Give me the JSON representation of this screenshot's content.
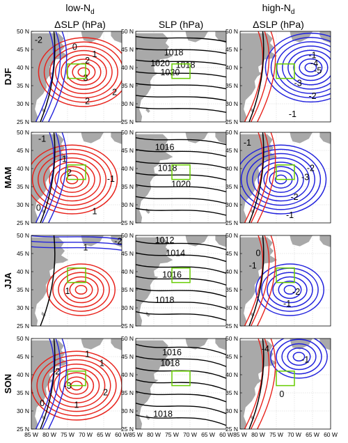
{
  "columns": [
    {
      "line1_main": "low-N",
      "line1_sub": "d",
      "line2": "ΔSLP (hPa)"
    },
    {
      "line1_main": "SLP (hPa)",
      "line1_sub": "",
      "line2": ""
    },
    {
      "line1_main": "high-N",
      "line1_sub": "d",
      "line2": "ΔSLP (hPa)"
    }
  ],
  "rows": [
    "DJF",
    "MAM",
    "JJA",
    "SON"
  ],
  "lat_ticks": [
    "50 N",
    "45 N",
    "40 N",
    "35 N",
    "30 N",
    "25 N"
  ],
  "lon_ticks": [
    "85 W",
    "80 W",
    "75 W",
    "70 W",
    "65 W",
    "60 W"
  ],
  "map_extent": {
    "lon": [
      -85,
      -60
    ],
    "lat": [
      25,
      50
    ]
  },
  "region_box": {
    "lon": [
      -75,
      -70
    ],
    "lat": [
      37,
      41
    ]
  },
  "colors": {
    "land": "#a9a9a9",
    "positive": "#e8231c",
    "negative": "#2222dd",
    "absolute": "#000000",
    "box": "#66cc00"
  },
  "contour_labels": [
    [
      [
        "-2",
        "0",
        "1",
        "2",
        "3",
        "2",
        "2"
      ],
      [
        "1018",
        "1020",
        "1018",
        "1020"
      ],
      [
        "-1",
        "-4",
        "-5",
        "-3",
        "-2",
        "-1"
      ]
    ],
    [
      [
        "-1",
        "2",
        "-1",
        "1",
        "0",
        "-1"
      ],
      [
        "1016",
        "1018",
        "1020"
      ],
      [
        "-1",
        "-2",
        "-3",
        "-2",
        "-1"
      ]
    ],
    [
      [
        "-2",
        "1",
        "1"
      ],
      [
        "1012",
        "1014",
        "1016",
        "1018"
      ],
      [
        "-1",
        "-2",
        "-1",
        "0"
      ]
    ],
    [
      [
        "1",
        "2",
        "-3",
        "2",
        "0",
        "1",
        "1"
      ],
      [
        "1016",
        "1018",
        "1018"
      ],
      [
        "-4",
        "-1",
        "0"
      ]
    ]
  ]
}
